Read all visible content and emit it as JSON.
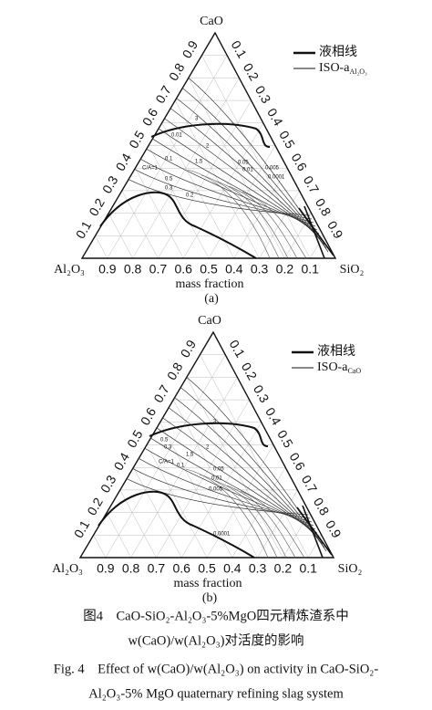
{
  "panels": [
    {
      "apex_top": "CaO",
      "apex_left": "Al₂O₃",
      "apex_right": "SiO₂",
      "ticks": [
        0.1,
        0.2,
        0.3,
        0.4,
        0.5,
        0.6,
        0.7,
        0.8,
        0.9
      ],
      "axis_label": "mass fraction",
      "panel_label": "(a)",
      "legend": [
        {
          "label": "液相线"
        },
        {
          "label": "ISO-a",
          "sub": "Al₂O₃"
        }
      ],
      "contour_labels": [
        "3",
        "2",
        "1.5",
        "C/A=1",
        "0.5",
        "0.3",
        "0.1",
        "0.01",
        "0.2",
        "0.05",
        "0.01",
        "0.005",
        "0.0001"
      ]
    },
    {
      "apex_top": "CaO",
      "apex_left": "Al₂O₃",
      "apex_right": "SiO₂",
      "ticks": [
        0.1,
        0.2,
        0.3,
        0.4,
        0.5,
        0.6,
        0.7,
        0.8,
        0.9
      ],
      "axis_label": "mass fraction",
      "panel_label": "(b)",
      "legend": [
        {
          "label": "液相线"
        },
        {
          "label": "ISO-a",
          "sub": "CaO"
        }
      ],
      "contour_labels": [
        "3",
        "2",
        "1.5",
        "C/A=1",
        "0.5",
        "0.3",
        "0.1",
        "0.05",
        "0.01",
        "0.005",
        "0.0001"
      ]
    }
  ],
  "caption": {
    "zh_line1": "图4　CaO-SiO₂-Al₂O₃-5%MgO四元精炼渣系中",
    "zh_line2": "w(CaO)/w(Al₂O₃)对活度的影响",
    "en_line1": "Fig. 4　Effect of w(CaO)/w(Al₂O₃) on activity in CaO-SiO₂-",
    "en_line2": "Al₂O₃-5% MgO quaternary refining slag system"
  }
}
